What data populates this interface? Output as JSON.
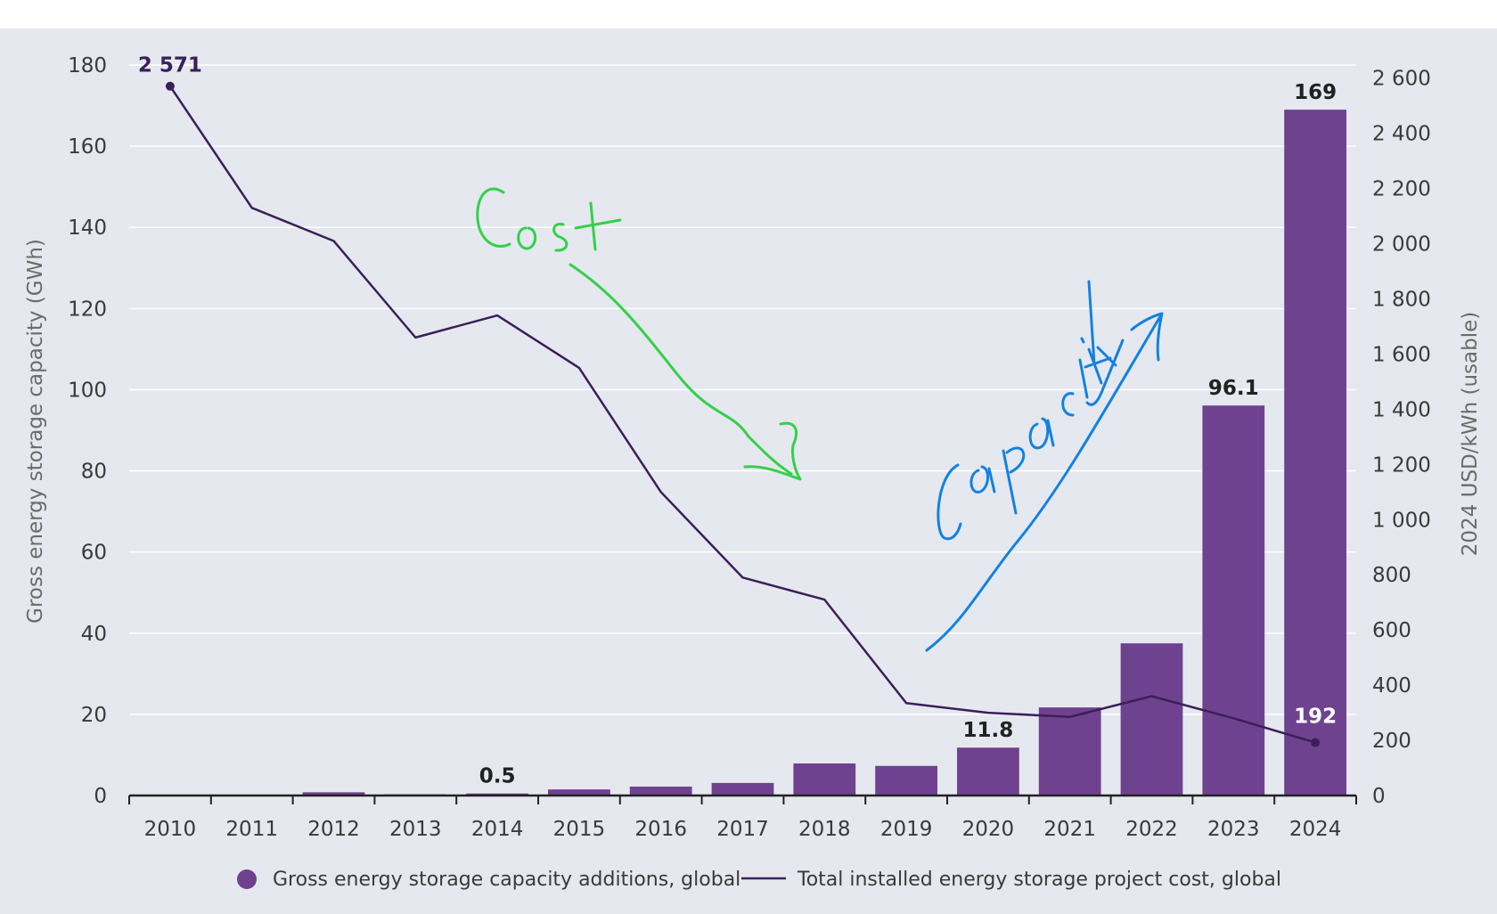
{
  "colors": {
    "bar": "#6f428f",
    "line": "#3b1f5a",
    "grid": "#ffffff",
    "background": "#e6e8ef",
    "note_cost": "#35d04a",
    "note_capacity": "#1282e0"
  },
  "chart_data": {
    "type": "bar+line",
    "categories": [
      "2010",
      "2011",
      "2012",
      "2013",
      "2014",
      "2015",
      "2016",
      "2017",
      "2018",
      "2019",
      "2020",
      "2021",
      "2022",
      "2023",
      "2024"
    ],
    "series": [
      {
        "name": "Gross energy storage capacity additions, global",
        "type": "bar",
        "axis": "left",
        "values": [
          0.1,
          0.1,
          0.8,
          0.3,
          0.5,
          1.5,
          2.2,
          3.1,
          7.9,
          7.3,
          11.8,
          21.7,
          37.5,
          96.1,
          169
        ]
      },
      {
        "name": "Total installed energy storage project cost, global",
        "type": "line",
        "axis": "right",
        "values": [
          2571,
          2130,
          2010,
          1660,
          1740,
          1550,
          1100,
          790,
          710,
          335,
          300,
          285,
          360,
          280,
          192
        ]
      }
    ],
    "bar_labels": [
      {
        "index": 4,
        "text": "0.5"
      },
      {
        "index": 10,
        "text": "11.8"
      },
      {
        "index": 13,
        "text": "96.1"
      },
      {
        "index": 14,
        "text": "169"
      }
    ],
    "line_labels": [
      {
        "index": 0,
        "text": "2 571"
      },
      {
        "index": 14,
        "text": "192"
      }
    ],
    "ylabel_left": "Gross energy storage capacity (GWh)",
    "ylabel_right": "2024 USD/kWh (usable)",
    "ylim_left": [
      0,
      180
    ],
    "ylim_right": [
      0,
      2647.6
    ],
    "yticks_left": [
      "0",
      "20",
      "40",
      "60",
      "80",
      "100",
      "120",
      "140",
      "160",
      "180"
    ],
    "yticks_right": [
      "0",
      "200",
      "400",
      "600",
      "800",
      "1 000",
      "1 200",
      "1 400",
      "1 600",
      "1 800",
      "2 000",
      "2 200",
      "2 400",
      "2 600"
    ],
    "grid": true,
    "legend_position": "bottom",
    "annotations": [
      {
        "text": "Cost",
        "style": "handwritten",
        "color": "green",
        "arrow": "down-right"
      },
      {
        "text": "Capacity",
        "style": "handwritten",
        "color": "blue",
        "arrow": "up-right"
      }
    ]
  },
  "legend": {
    "bar_label": "Gross energy storage capacity additions, global",
    "line_label": "Total installed energy storage project cost, global"
  }
}
